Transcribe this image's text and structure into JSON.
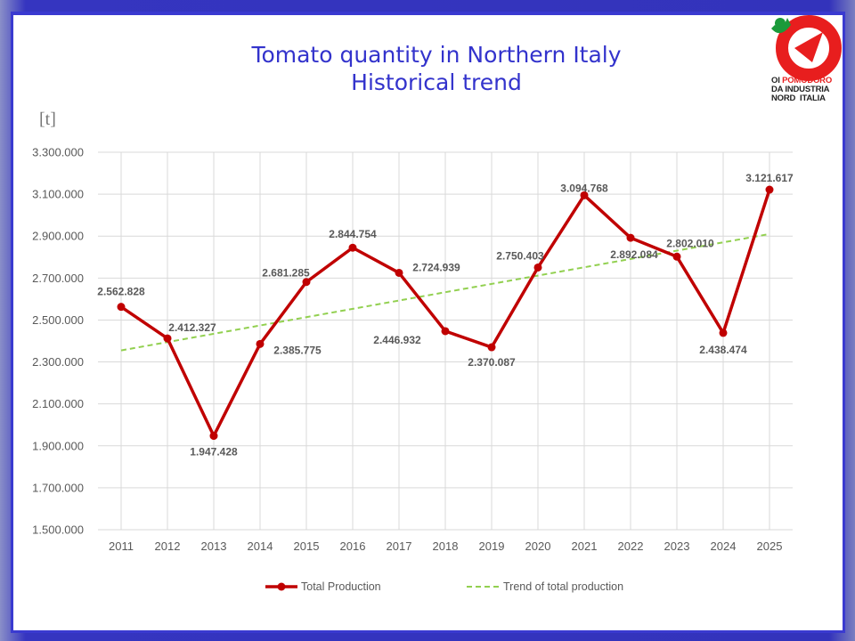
{
  "header": {
    "title_line1": "Tomato quantity in Northern Italy",
    "title_line2": "Historical trend",
    "unit": "[t]"
  },
  "logo": {
    "line1a": "OI",
    "line1b": "POMODORO",
    "line2": "DA INDUSTRIA",
    "line3": "NORD  ITALIA"
  },
  "colors": {
    "series": "#c00000",
    "trend": "#92d050",
    "title": "#3333cc",
    "frame": "#3333bb"
  },
  "chart_data": {
    "type": "line",
    "title": "Tomato quantity in Northern Italy - Historical trend",
    "ylabel": "[t]",
    "xlabel": "",
    "ylim": [
      1500000,
      3300000
    ],
    "yticks": [
      "1.500.000",
      "1.700.000",
      "1.900.000",
      "2.100.000",
      "2.300.000",
      "2.500.000",
      "2.700.000",
      "2.900.000",
      "3.100.000",
      "3.300.000"
    ],
    "categories": [
      "2011",
      "2012",
      "2013",
      "2014",
      "2015",
      "2016",
      "2017",
      "2018",
      "2019",
      "2020",
      "2021",
      "2022",
      "2023",
      "2024",
      "2025"
    ],
    "series": [
      {
        "name": "Total Production",
        "values": [
          2562828,
          2412327,
          1947428,
          2385775,
          2681285,
          2844754,
          2724939,
          2446932,
          2370087,
          2750403,
          3094768,
          2892084,
          2802010,
          2438474,
          3121617
        ],
        "labels": [
          "2.562.828",
          "2.412.327",
          "1.947.428",
          "2.385.775",
          "2.681.285",
          "2.844.754",
          "2.724.939",
          "2.446.932",
          "2.370.087",
          "2.750.403",
          "3.094.768",
          "2.892.084",
          "2.802.010",
          "2.438.474",
          "3.121.617"
        ]
      },
      {
        "name": "Trend of total production",
        "type": "linear-trend",
        "values_start_end": [
          2355000,
          2910000
        ]
      }
    ],
    "grid": true,
    "legend": "bottom"
  }
}
